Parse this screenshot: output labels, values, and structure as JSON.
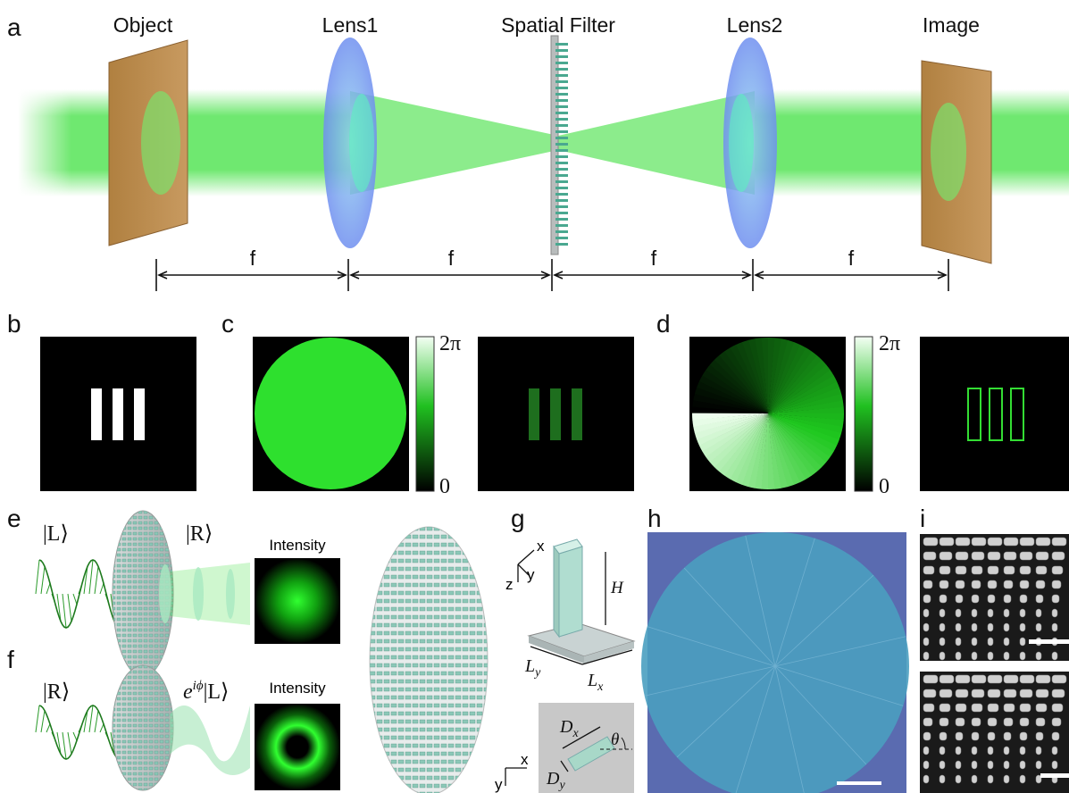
{
  "figure": {
    "panel_labels": [
      "a",
      "b",
      "c",
      "d",
      "e",
      "f",
      "g",
      "h",
      "i"
    ],
    "a": {
      "components": [
        "Object",
        "Lens1",
        "Spatial Filter",
        "Lens2",
        "Image"
      ],
      "distances": [
        "f",
        "f",
        "f",
        "f"
      ]
    },
    "c": {
      "colorbar": {
        "max": "2π",
        "min": "0"
      }
    },
    "d": {
      "colorbar": {
        "max": "2π",
        "min": "0"
      }
    },
    "e": {
      "input": "|L⟩",
      "output": "|R⟩",
      "intensity_label": "Intensity"
    },
    "f": {
      "input": "|R⟩",
      "output": {
        "base": "e",
        "exponent": "iϕ",
        "ket": "|L⟩"
      },
      "intensity_label": "Intensity"
    },
    "g": {
      "axes_3d": {
        "x": "x",
        "y": "y",
        "z": "z"
      },
      "height": "H",
      "length_y": {
        "symbol": "L",
        "subscript": "y"
      },
      "length_x": {
        "symbol": "L",
        "subscript": "x"
      },
      "width_x": {
        "symbol": "D",
        "subscript": "x"
      },
      "width_y": {
        "symbol": "D",
        "subscript": "y"
      },
      "angle": "θ",
      "axes_2d": {
        "x": "x",
        "y": "y"
      }
    }
  }
}
